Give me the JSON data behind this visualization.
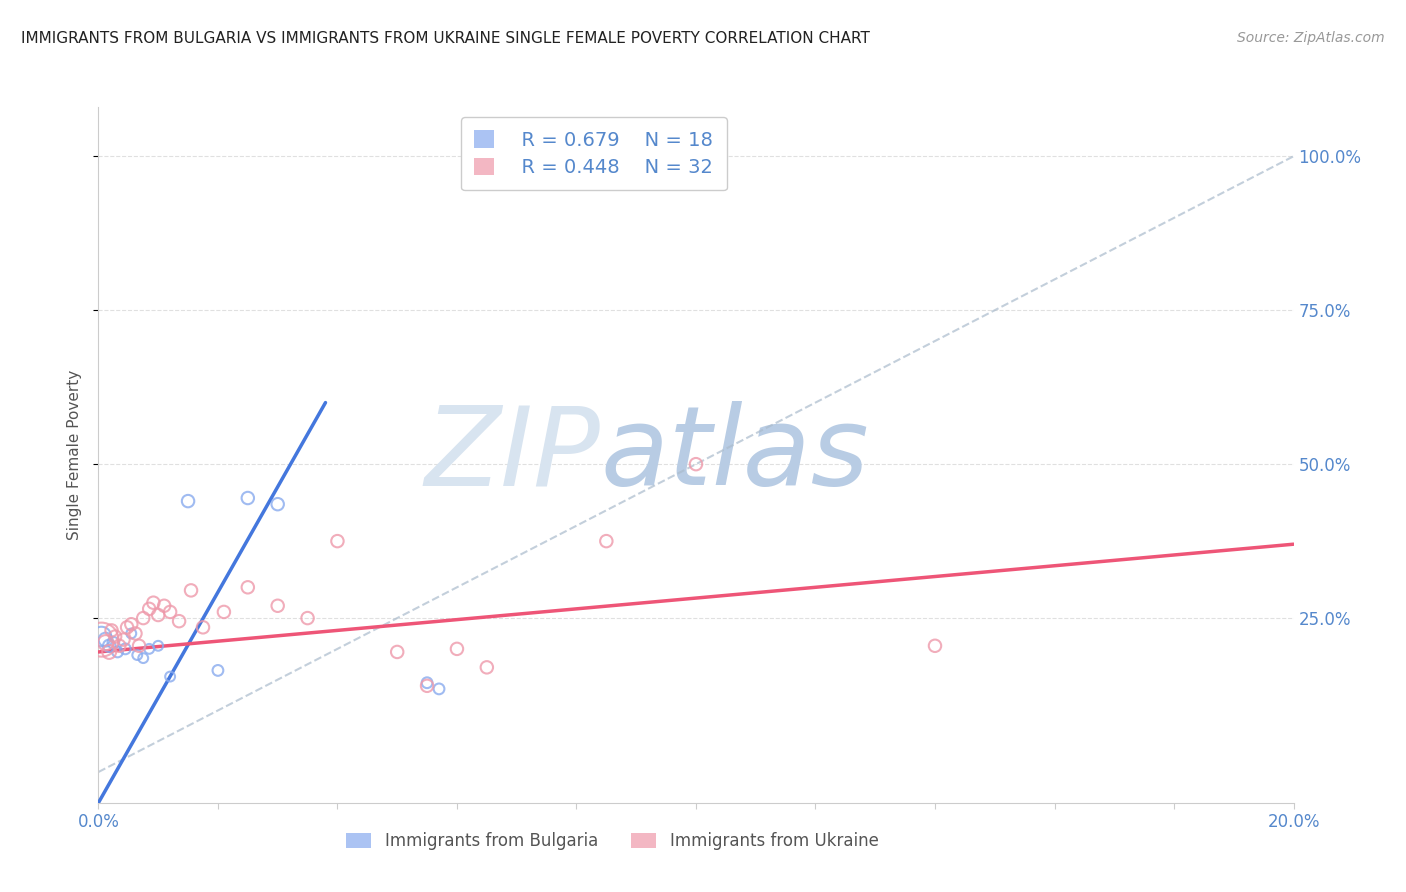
{
  "title": "IMMIGRANTS FROM BULGARIA VS IMMIGRANTS FROM UKRAINE SINGLE FEMALE POVERTY CORRELATION CHART",
  "source": "Source: ZipAtlas.com",
  "ylabel": "Single Female Poverty",
  "xlim": [
    0.0,
    20.0
  ],
  "ylim": [
    -5.0,
    108.0
  ],
  "y_ticks": [
    25.0,
    50.0,
    75.0,
    100.0
  ],
  "x_ticks": [
    0.0,
    2.0,
    4.0,
    6.0,
    8.0,
    10.0,
    12.0,
    14.0,
    16.0,
    18.0,
    20.0
  ],
  "legend_r_bulgaria": "R = 0.679",
  "legend_n_bulgaria": "N = 18",
  "legend_r_ukraine": "R = 0.448",
  "legend_n_ukraine": "N = 32",
  "legend_label_bulgaria": "Immigrants from Bulgaria",
  "legend_label_ukraine": "Immigrants from Ukraine",
  "bg_color": "#ffffff",
  "grid_color": "#cccccc",
  "watermark_zip": "ZIP",
  "watermark_atlas": "atlas",
  "watermark_zip_color": "#d8e4f0",
  "watermark_atlas_color": "#b8cce4",
  "blue_dot_color": "#88aaee",
  "pink_dot_color": "#ee99aa",
  "blue_line_color": "#4477dd",
  "pink_line_color": "#ee5577",
  "diag_color": "#aabbcc",
  "title_color": "#222222",
  "source_color": "#999999",
  "axis_label_color": "#5588cc",
  "blue_line_x": [
    0.0,
    3.8
  ],
  "blue_line_y": [
    -5.0,
    60.0
  ],
  "pink_line_x": [
    0.0,
    20.0
  ],
  "pink_line_y": [
    19.5,
    37.0
  ],
  "diag_line_x": [
    0.0,
    20.0
  ],
  "diag_line_y": [
    0.0,
    100.0
  ],
  "bulgaria_points": [
    [
      0.05,
      22.0,
      200
    ],
    [
      0.12,
      21.5,
      100
    ],
    [
      0.18,
      20.5,
      80
    ],
    [
      0.25,
      21.0,
      70
    ],
    [
      0.32,
      19.5,
      60
    ],
    [
      0.45,
      20.0,
      60
    ],
    [
      0.55,
      22.5,
      50
    ],
    [
      0.65,
      19.0,
      50
    ],
    [
      0.75,
      18.5,
      50
    ],
    [
      0.85,
      20.0,
      50
    ],
    [
      1.0,
      20.5,
      50
    ],
    [
      1.2,
      15.5,
      50
    ],
    [
      1.5,
      44.0,
      80
    ],
    [
      2.0,
      16.5,
      60
    ],
    [
      2.5,
      44.5,
      80
    ],
    [
      3.0,
      43.5,
      80
    ],
    [
      5.5,
      14.5,
      60
    ],
    [
      5.7,
      13.5,
      60
    ]
  ],
  "ukraine_points": [
    [
      0.05,
      21.5,
      600
    ],
    [
      0.12,
      21.0,
      120
    ],
    [
      0.18,
      19.5,
      100
    ],
    [
      0.22,
      23.0,
      80
    ],
    [
      0.28,
      22.0,
      80
    ],
    [
      0.35,
      20.5,
      80
    ],
    [
      0.42,
      21.5,
      80
    ],
    [
      0.48,
      23.5,
      80
    ],
    [
      0.55,
      24.0,
      80
    ],
    [
      0.62,
      22.5,
      80
    ],
    [
      0.68,
      20.5,
      80
    ],
    [
      0.75,
      25.0,
      80
    ],
    [
      0.85,
      26.5,
      80
    ],
    [
      0.92,
      27.5,
      80
    ],
    [
      1.0,
      25.5,
      80
    ],
    [
      1.1,
      27.0,
      80
    ],
    [
      1.2,
      26.0,
      80
    ],
    [
      1.35,
      24.5,
      80
    ],
    [
      1.55,
      29.5,
      80
    ],
    [
      1.75,
      23.5,
      80
    ],
    [
      2.1,
      26.0,
      80
    ],
    [
      2.5,
      30.0,
      80
    ],
    [
      3.0,
      27.0,
      80
    ],
    [
      3.5,
      25.0,
      80
    ],
    [
      4.0,
      37.5,
      80
    ],
    [
      5.0,
      19.5,
      80
    ],
    [
      5.5,
      14.0,
      80
    ],
    [
      6.0,
      20.0,
      80
    ],
    [
      8.5,
      37.5,
      80
    ],
    [
      10.0,
      50.0,
      80
    ],
    [
      14.0,
      20.5,
      80
    ],
    [
      6.5,
      17.0,
      80
    ]
  ]
}
